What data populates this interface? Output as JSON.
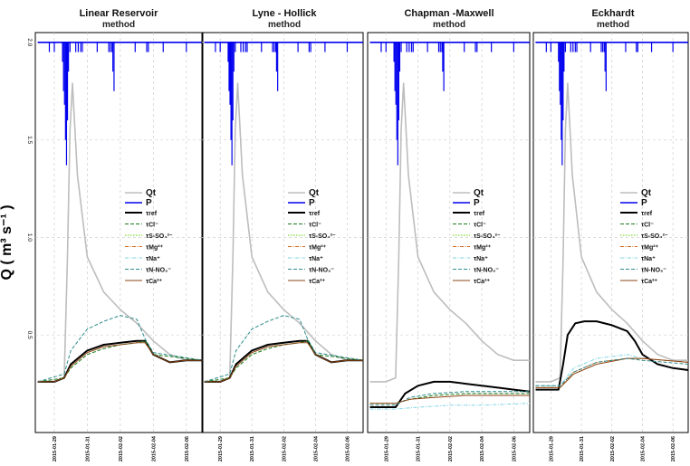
{
  "chart_data": {
    "type": "line",
    "ylabel": "Q ( m³ s⁻¹ )",
    "ylim": [
      0.0,
      2.05
    ],
    "yticks": [
      "0.5",
      "1.0",
      "1.5",
      "2.0"
    ],
    "xlim": [
      "2015-01-28",
      "2015-02-07"
    ],
    "xticks": [
      "2015-01-29",
      "2015-01-31",
      "2015-02-02",
      "2015-02-04",
      "2015-02-06"
    ],
    "grid": true,
    "legend_position": "right",
    "legend": [
      {
        "label": "Qt",
        "color": "#bdbdbd",
        "dash": "solid",
        "width": 1.6,
        "big": true
      },
      {
        "label": "P",
        "color": "#0000ee",
        "dash": "solid",
        "width": 1.6,
        "big": true
      },
      {
        "label": "τref",
        "color": "#000000",
        "dash": "solid",
        "width": 2,
        "big": false
      },
      {
        "label": "τCl⁻",
        "color": "#1b7a1b",
        "dash": "4,2",
        "width": 1,
        "big": false
      },
      {
        "label": "τS-SO₄²⁻",
        "color": "#66cc00",
        "dash": "1.5,1.5",
        "width": 1,
        "big": false
      },
      {
        "label": "τMg²⁺",
        "color": "#d2691e",
        "dash": "4,1.5,1,1.5",
        "width": 1,
        "big": false
      },
      {
        "label": "τNa⁺",
        "color": "#7fd6e6",
        "dash": "4,1.5,1,1.5",
        "width": 1,
        "big": false
      },
      {
        "label": "τN-NO₃⁻",
        "color": "#2e8b8b",
        "dash": "4,2",
        "width": 1,
        "big": false
      },
      {
        "label": "τCa²⁺",
        "color": "#8b4513",
        "dash": "solid",
        "width": 1,
        "big": false
      }
    ],
    "panels": [
      {
        "title": "Linear Reservoir",
        "subtitle": "method",
        "series": [
          {
            "name": "Qt",
            "x": [
              0.0,
              1.0,
              1.6,
              1.8,
              1.95,
              2.1,
              2.4,
              3.0,
              4.0,
              5.0,
              6.0,
              7.0,
              8.0,
              9.0,
              10.0
            ],
            "y": [
              0.26,
              0.26,
              0.28,
              0.9,
              1.55,
              1.79,
              1.32,
              0.9,
              0.72,
              0.63,
              0.56,
              0.47,
              0.4,
              0.37,
              0.37
            ]
          },
          {
            "name": "P",
            "x": [
              0.0,
              10.0
            ],
            "y": [
              2.0,
              2.0
            ]
          },
          {
            "name": "τref",
            "x": [
              0.0,
              1.0,
              1.6,
              2.0,
              3.0,
              4.0,
              5.0,
              6.0,
              6.5,
              7.0,
              8.0,
              9.0,
              10.0
            ],
            "y": [
              0.26,
              0.26,
              0.28,
              0.35,
              0.42,
              0.45,
              0.46,
              0.47,
              0.47,
              0.4,
              0.36,
              0.37,
              0.37
            ]
          },
          {
            "name": "τCl⁻",
            "x": [
              0.0,
              1.6,
              2.0,
              3.0,
              4.0,
              5.0,
              6.0,
              6.5,
              7.0,
              10.0
            ],
            "y": [
              0.26,
              0.28,
              0.33,
              0.4,
              0.43,
              0.45,
              0.46,
              0.47,
              0.4,
              0.37
            ]
          },
          {
            "name": "τN-NO₃⁻",
            "x": [
              0.0,
              1.6,
              2.0,
              3.0,
              4.0,
              5.0,
              6.0,
              6.5,
              7.0,
              10.0
            ],
            "y": [
              0.26,
              0.3,
              0.42,
              0.53,
              0.57,
              0.6,
              0.58,
              0.48,
              0.41,
              0.37
            ]
          },
          {
            "name": "τCa²⁺",
            "x": [
              0.0,
              1.0,
              1.6,
              2.0,
              3.0,
              4.0,
              5.0,
              6.0,
              6.5,
              7.0,
              8.0,
              9.0,
              10.0
            ],
            "y": [
              0.26,
              0.26,
              0.28,
              0.34,
              0.41,
              0.44,
              0.45,
              0.46,
              0.46,
              0.4,
              0.36,
              0.37,
              0.37
            ]
          }
        ]
      },
      {
        "title": "Lyne - Hollick",
        "subtitle": "method",
        "series": [
          {
            "name": "Qt",
            "x": [
              0.0,
              1.0,
              1.6,
              1.8,
              1.95,
              2.1,
              2.4,
              3.0,
              4.0,
              5.0,
              6.0,
              7.0,
              8.0,
              9.0,
              10.0
            ],
            "y": [
              0.26,
              0.26,
              0.28,
              0.9,
              1.55,
              1.79,
              1.32,
              0.9,
              0.72,
              0.63,
              0.56,
              0.47,
              0.4,
              0.37,
              0.37
            ]
          },
          {
            "name": "P",
            "x": [
              0.0,
              10.0
            ],
            "y": [
              2.0,
              2.0
            ]
          },
          {
            "name": "τref",
            "x": [
              0.0,
              1.0,
              1.6,
              2.0,
              3.0,
              4.0,
              5.0,
              6.0,
              6.5,
              7.0,
              8.0,
              9.0,
              10.0
            ],
            "y": [
              0.26,
              0.26,
              0.28,
              0.35,
              0.42,
              0.45,
              0.46,
              0.47,
              0.47,
              0.4,
              0.36,
              0.37,
              0.37
            ]
          },
          {
            "name": "τCl⁻",
            "x": [
              0.0,
              1.6,
              2.0,
              3.0,
              4.0,
              5.0,
              6.0,
              6.5,
              7.0,
              10.0
            ],
            "y": [
              0.26,
              0.28,
              0.33,
              0.4,
              0.43,
              0.45,
              0.46,
              0.47,
              0.4,
              0.37
            ]
          },
          {
            "name": "τN-NO₃⁻",
            "x": [
              0.0,
              1.6,
              2.0,
              3.0,
              4.0,
              5.0,
              6.0,
              6.5,
              7.0,
              10.0
            ],
            "y": [
              0.26,
              0.3,
              0.42,
              0.53,
              0.57,
              0.6,
              0.58,
              0.48,
              0.41,
              0.37
            ]
          },
          {
            "name": "τCa²⁺",
            "x": [
              0.0,
              1.0,
              1.6,
              2.0,
              3.0,
              4.0,
              5.0,
              6.0,
              6.5,
              7.0,
              8.0,
              9.0,
              10.0
            ],
            "y": [
              0.26,
              0.26,
              0.28,
              0.34,
              0.41,
              0.44,
              0.45,
              0.46,
              0.46,
              0.4,
              0.36,
              0.37,
              0.37
            ]
          }
        ]
      },
      {
        "title": "Chapman -Maxwell",
        "subtitle": "method",
        "series": [
          {
            "name": "Qt",
            "x": [
              0.0,
              1.0,
              1.6,
              1.8,
              1.95,
              2.1,
              2.4,
              3.0,
              4.0,
              5.0,
              6.0,
              7.0,
              8.0,
              9.0,
              10.0
            ],
            "y": [
              0.26,
              0.26,
              0.28,
              0.9,
              1.55,
              1.79,
              1.32,
              0.9,
              0.72,
              0.63,
              0.56,
              0.47,
              0.4,
              0.37,
              0.37
            ]
          },
          {
            "name": "P",
            "x": [
              0.0,
              10.0
            ],
            "y": [
              2.0,
              2.0
            ]
          },
          {
            "name": "τref",
            "x": [
              0.0,
              1.6,
              2.2,
              3.0,
              4.0,
              5.0,
              6.0,
              7.0,
              8.0,
              9.0,
              10.0
            ],
            "y": [
              0.13,
              0.13,
              0.2,
              0.24,
              0.26,
              0.26,
              0.25,
              0.24,
              0.23,
              0.22,
              0.21
            ]
          },
          {
            "name": "τCl⁻",
            "x": [
              0.0,
              1.6,
              2.5,
              4.0,
              6.0,
              8.0,
              10.0
            ],
            "y": [
              0.15,
              0.15,
              0.17,
              0.19,
              0.2,
              0.2,
              0.2
            ]
          },
          {
            "name": "τN-NO₃⁻",
            "x": [
              0.0,
              1.6,
              2.5,
              4.0,
              6.0,
              8.0,
              10.0
            ],
            "y": [
              0.14,
              0.14,
              0.18,
              0.2,
              0.21,
              0.21,
              0.21
            ]
          },
          {
            "name": "τCa²⁺",
            "x": [
              0.0,
              1.6,
              2.5,
              4.0,
              6.0,
              8.0,
              10.0
            ],
            "y": [
              0.15,
              0.15,
              0.17,
              0.18,
              0.19,
              0.19,
              0.19
            ]
          },
          {
            "name": "τNa⁺",
            "x": [
              0.0,
              1.6,
              3.0,
              5.0,
              7.0,
              10.0
            ],
            "y": [
              0.12,
              0.12,
              0.13,
              0.14,
              0.14,
              0.15
            ]
          }
        ]
      },
      {
        "title": "Eckhardt",
        "subtitle": "method",
        "series": [
          {
            "name": "Qt",
            "x": [
              0.0,
              1.0,
              1.6,
              1.8,
              1.95,
              2.1,
              2.4,
              3.0,
              4.0,
              5.0,
              6.0,
              7.0,
              8.0,
              9.0,
              10.0
            ],
            "y": [
              0.26,
              0.26,
              0.28,
              0.9,
              1.55,
              1.79,
              1.32,
              0.9,
              0.72,
              0.63,
              0.56,
              0.47,
              0.4,
              0.37,
              0.37
            ]
          },
          {
            "name": "P",
            "x": [
              0.0,
              10.0
            ],
            "y": [
              2.0,
              2.0
            ]
          },
          {
            "name": "τref",
            "x": [
              0.0,
              1.5,
              1.8,
              2.1,
              2.6,
              3.2,
              4.0,
              5.0,
              6.0,
              6.5,
              7.0,
              8.0,
              9.0,
              10.0
            ],
            "y": [
              0.22,
              0.22,
              0.35,
              0.5,
              0.56,
              0.57,
              0.57,
              0.55,
              0.52,
              0.47,
              0.4,
              0.35,
              0.33,
              0.32
            ]
          },
          {
            "name": "τNa⁺",
            "x": [
              0.0,
              1.6,
              2.5,
              4.0,
              6.0,
              7.0,
              10.0
            ],
            "y": [
              0.24,
              0.24,
              0.33,
              0.38,
              0.4,
              0.38,
              0.36
            ]
          },
          {
            "name": "τMg²⁺",
            "x": [
              0.0,
              1.6,
              2.5,
              4.0,
              6.0,
              7.0,
              10.0
            ],
            "y": [
              0.23,
              0.23,
              0.31,
              0.36,
              0.38,
              0.38,
              0.36
            ]
          },
          {
            "name": "τCa²⁺",
            "x": [
              0.0,
              1.6,
              2.5,
              4.0,
              6.0,
              7.0,
              10.0
            ],
            "y": [
              0.23,
              0.23,
              0.3,
              0.35,
              0.38,
              0.38,
              0.36
            ]
          },
          {
            "name": "τN-NO₃⁻",
            "x": [
              0.0,
              1.6,
              2.5,
              4.0,
              6.0,
              7.0,
              10.0
            ],
            "y": [
              0.24,
              0.24,
              0.31,
              0.36,
              0.38,
              0.37,
              0.35
            ]
          }
        ]
      }
    ],
    "precipitation_bars": [
      {
        "x": 0.7,
        "y": 1.95
      },
      {
        "x": 1.0,
        "y": 1.95
      },
      {
        "x": 1.5,
        "y": 1.9
      },
      {
        "x": 1.56,
        "y": 1.75
      },
      {
        "x": 1.62,
        "y": 1.68
      },
      {
        "x": 1.68,
        "y": 1.5
      },
      {
        "x": 1.74,
        "y": 1.37
      },
      {
        "x": 1.8,
        "y": 1.6
      },
      {
        "x": 1.86,
        "y": 1.85
      },
      {
        "x": 1.95,
        "y": 1.95
      },
      {
        "x": 2.3,
        "y": 1.95
      },
      {
        "x": 2.45,
        "y": 1.95
      },
      {
        "x": 2.6,
        "y": 1.95
      },
      {
        "x": 2.7,
        "y": 1.95
      },
      {
        "x": 3.6,
        "y": 1.95
      },
      {
        "x": 4.3,
        "y": 1.95
      },
      {
        "x": 4.4,
        "y": 1.95
      },
      {
        "x": 4.5,
        "y": 1.95
      },
      {
        "x": 4.55,
        "y": 1.85
      },
      {
        "x": 4.62,
        "y": 1.75
      },
      {
        "x": 5.9,
        "y": 1.95
      },
      {
        "x": 6.6,
        "y": 1.95
      },
      {
        "x": 6.7,
        "y": 1.95
      },
      {
        "x": 7.6,
        "y": 1.95
      },
      {
        "x": 9.0,
        "y": 1.95
      }
    ]
  }
}
